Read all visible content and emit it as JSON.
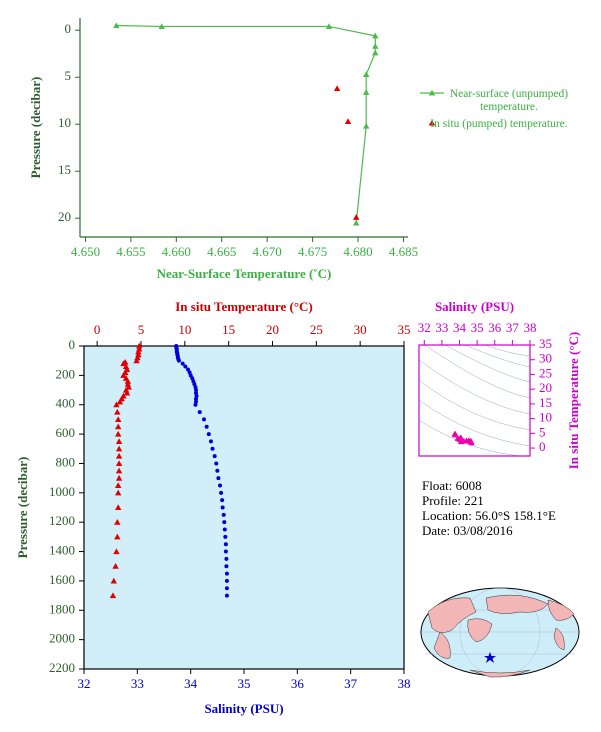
{
  "chart_data": [
    {
      "type": "line",
      "x_label": "Near-Surface Temperature (˚C)",
      "y_label": "Pressure (decibar)",
      "xlim": [
        4.6494,
        4.6855
      ],
      "ylim": [
        -1.3,
        22
      ],
      "y_inverted": true,
      "xticks": [
        {
          "value": 4.65,
          "label": "4.650"
        },
        4.655,
        {
          "value": 4.66,
          "label": "4.660"
        },
        4.665,
        {
          "value": 4.67,
          "label": "4.670"
        },
        4.675,
        {
          "value": 4.68,
          "label": "4.680"
        },
        4.685
      ],
      "yticks": [
        0,
        5,
        10,
        15,
        20
      ],
      "series": [
        {
          "name": "Near-surface (unpumped) temperature.",
          "color": "#4cbb4c",
          "marker": "triangle",
          "line": true,
          "x": [
            4.6534,
            4.6584,
            4.6768,
            4.6819,
            4.6819,
            4.6819,
            4.6809,
            4.6809,
            4.6809,
            4.6798
          ],
          "y": [
            -0.5,
            -0.4,
            -0.4,
            0.6,
            1.7,
            2.4,
            4.7,
            6.6,
            10.2,
            20.5
          ]
        },
        {
          "name": "In situ (pumped) temperature.",
          "color": "#e00000",
          "marker": "triangle",
          "line": false,
          "x": [
            4.6777,
            4.6789,
            4.6798
          ],
          "y": [
            6.2,
            9.7,
            19.9
          ]
        }
      ]
    },
    {
      "type": "scatter",
      "x_label": "Salinity (PSU)",
      "x2_label": "In situ Temperature (°C)",
      "y_label": "Pressure (decibar)",
      "xlim": [
        32,
        38
      ],
      "x2lim": [
        -1.5,
        35
      ],
      "ylim": [
        0,
        2200
      ],
      "y_inverted": true,
      "xticks": [
        32,
        33,
        34,
        35,
        36,
        37,
        38
      ],
      "x2ticks": [
        0,
        5,
        10,
        15,
        20,
        25,
        30,
        35
      ],
      "yticks": [
        0,
        200,
        400,
        600,
        800,
        1000,
        1200,
        1400,
        1600,
        1800,
        2000,
        2200
      ],
      "background": "#d2eef8",
      "series": [
        {
          "color": "#0000dd",
          "marker": "circle",
          "x": [
            33.73,
            33.73,
            33.74,
            33.74,
            33.74,
            33.75,
            33.75,
            33.76,
            33.76,
            33.77,
            33.78,
            33.85,
            33.9,
            33.95,
            33.98,
            34.0,
            34.03,
            34.05,
            34.07,
            34.09,
            34.1,
            34.1,
            34.11,
            34.1,
            34.1,
            34.09,
            34.17,
            34.25,
            34.3,
            34.34,
            34.38,
            34.41,
            34.45,
            34.48,
            34.5,
            34.52,
            34.55,
            34.57,
            34.59,
            34.6,
            34.62,
            34.63,
            34.64,
            34.65,
            34.66,
            34.66,
            34.67,
            34.67,
            34.68,
            34.68,
            34.68,
            34.68
          ],
          "y": [
            0,
            10,
            20,
            30,
            40,
            50,
            60,
            70,
            80,
            90,
            100,
            120,
            140,
            160,
            180,
            200,
            220,
            240,
            260,
            280,
            300,
            320,
            340,
            360,
            380,
            400,
            450,
            500,
            550,
            600,
            650,
            700,
            750,
            800,
            850,
            900,
            950,
            1000,
            1050,
            1100,
            1150,
            1200,
            1250,
            1300,
            1350,
            1400,
            1450,
            1500,
            1550,
            1600,
            1650,
            1700
          ]
        },
        {
          "color": "#e00000",
          "marker": "triangle",
          "axis": "x2",
          "x": [
            4.8,
            4.8,
            4.7,
            4.7,
            4.6,
            4.5,
            3.2,
            3.0,
            3.3,
            3.4,
            3.2,
            3.0,
            3.3,
            3.5,
            3.5,
            3.6,
            3.3,
            3.4,
            3.0,
            2.8,
            2.6,
            2.2,
            2.3,
            2.4,
            2.4,
            2.4,
            2.5,
            2.5,
            2.5,
            2.5,
            2.5,
            2.5,
            2.4,
            2.4,
            2.4,
            2.3,
            2.3,
            2.2,
            2.1,
            1.9,
            1.8
          ],
          "y": [
            0,
            20,
            40,
            60,
            80,
            100,
            110,
            120,
            140,
            160,
            180,
            200,
            220,
            240,
            260,
            280,
            300,
            320,
            340,
            360,
            380,
            400,
            450,
            500,
            550,
            600,
            650,
            700,
            750,
            800,
            850,
            900,
            950,
            1000,
            1100,
            1200,
            1300,
            1400,
            1500,
            1600,
            1700
          ]
        }
      ]
    },
    {
      "type": "scatter",
      "x_label": "Salinity (PSU)",
      "y_label": "In situ Temperature (°C)",
      "xlim": [
        31.7,
        38
      ],
      "ylim": [
        -2.7,
        35
      ],
      "x_side": "top",
      "y_side": "right",
      "xticks": [
        32,
        33,
        34,
        35,
        36,
        37,
        38
      ],
      "yticks": [
        0,
        5,
        10,
        15,
        20,
        25,
        30,
        35
      ],
      "series": [
        {
          "color": "#ee00aa",
          "marker": "triangle",
          "x": [
            33.73,
            33.76,
            33.78,
            33.9,
            34.0,
            34.05,
            34.1,
            34.1,
            34.09,
            34.25,
            34.4,
            34.52,
            34.6,
            34.65,
            34.67,
            34.68
          ],
          "y": [
            4.8,
            4.7,
            4.5,
            3.3,
            3.0,
            3.5,
            3.3,
            2.8,
            2.2,
            2.4,
            2.5,
            2.5,
            2.4,
            2.3,
            2.1,
            1.8
          ]
        }
      ]
    }
  ],
  "float_info": {
    "float": "Float:  6008",
    "profile": "Profile:  221",
    "location": "Location:  56.0°S  158.1°E",
    "date": "Date:  03/08/2016"
  }
}
